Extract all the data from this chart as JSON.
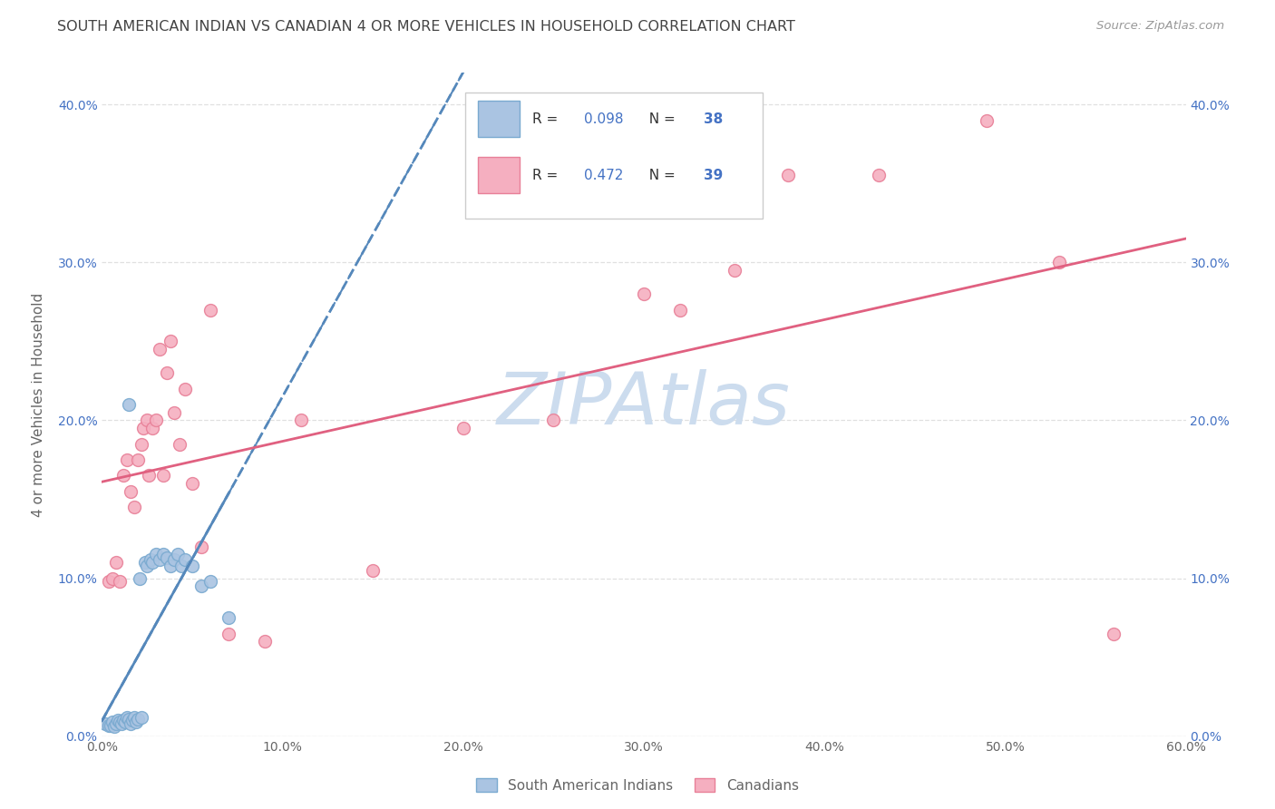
{
  "title": "SOUTH AMERICAN INDIAN VS CANADIAN 4 OR MORE VEHICLES IN HOUSEHOLD CORRELATION CHART",
  "source": "Source: ZipAtlas.com",
  "ylabel": "4 or more Vehicles in Household",
  "xlim": [
    0.0,
    0.6
  ],
  "ylim": [
    0.0,
    0.42
  ],
  "xticks": [
    0.0,
    0.1,
    0.2,
    0.3,
    0.4,
    0.5,
    0.6
  ],
  "yticks": [
    0.0,
    0.1,
    0.2,
    0.3,
    0.4
  ],
  "xtick_labels": [
    "0.0%",
    "10.0%",
    "20.0%",
    "30.0%",
    "40.0%",
    "50.0%",
    "60.0%"
  ],
  "ytick_labels": [
    "0.0%",
    "10.0%",
    "20.0%",
    "30.0%",
    "40.0%"
  ],
  "legend_entries": [
    "South American Indians",
    "Canadians"
  ],
  "R_blue": 0.098,
  "N_blue": 38,
  "R_pink": 0.472,
  "N_pink": 39,
  "blue_color": "#aac4e2",
  "pink_color": "#f5afc0",
  "blue_edge": "#7aaad0",
  "pink_edge": "#e88098",
  "title_color": "#444444",
  "source_color": "#999999",
  "grid_color": "#e0e0e0",
  "watermark_color": "#ccdcee",
  "blue_line_color": "#5588bb",
  "pink_line_color": "#e06080",
  "blue_scatter_x": [
    0.002,
    0.004,
    0.005,
    0.006,
    0.007,
    0.008,
    0.009,
    0.01,
    0.011,
    0.012,
    0.013,
    0.014,
    0.015,
    0.016,
    0.017,
    0.018,
    0.019,
    0.02,
    0.021,
    0.022,
    0.024,
    0.025,
    0.027,
    0.028,
    0.03,
    0.032,
    0.034,
    0.036,
    0.038,
    0.04,
    0.042,
    0.044,
    0.046,
    0.05,
    0.055,
    0.06,
    0.07,
    0.015
  ],
  "blue_scatter_y": [
    0.008,
    0.007,
    0.007,
    0.009,
    0.006,
    0.008,
    0.01,
    0.009,
    0.008,
    0.01,
    0.009,
    0.012,
    0.011,
    0.008,
    0.01,
    0.012,
    0.009,
    0.011,
    0.1,
    0.012,
    0.11,
    0.108,
    0.112,
    0.11,
    0.115,
    0.112,
    0.115,
    0.113,
    0.108,
    0.112,
    0.115,
    0.108,
    0.112,
    0.108,
    0.095,
    0.098,
    0.075,
    0.21
  ],
  "pink_scatter_x": [
    0.004,
    0.006,
    0.008,
    0.01,
    0.012,
    0.014,
    0.016,
    0.018,
    0.02,
    0.022,
    0.023,
    0.025,
    0.026,
    0.028,
    0.03,
    0.032,
    0.034,
    0.036,
    0.038,
    0.04,
    0.043,
    0.046,
    0.05,
    0.055,
    0.06,
    0.07,
    0.09,
    0.11,
    0.15,
    0.2,
    0.25,
    0.3,
    0.32,
    0.35,
    0.38,
    0.43,
    0.49,
    0.53,
    0.56
  ],
  "pink_scatter_y": [
    0.098,
    0.1,
    0.11,
    0.098,
    0.165,
    0.175,
    0.155,
    0.145,
    0.175,
    0.185,
    0.195,
    0.2,
    0.165,
    0.195,
    0.2,
    0.245,
    0.165,
    0.23,
    0.25,
    0.205,
    0.185,
    0.22,
    0.16,
    0.12,
    0.27,
    0.065,
    0.06,
    0.2,
    0.105,
    0.195,
    0.2,
    0.28,
    0.27,
    0.295,
    0.355,
    0.355,
    0.39,
    0.3,
    0.065
  ]
}
